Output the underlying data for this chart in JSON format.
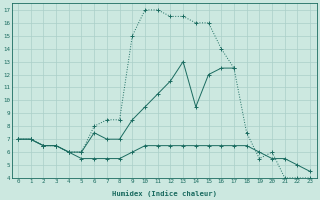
{
  "xlabel": "Humidex (Indice chaleur)",
  "bg_color": "#cce8e0",
  "grid_color": "#aacfc8",
  "line_color": "#1a6b60",
  "xlim": [
    -0.5,
    23.5
  ],
  "ylim": [
    4,
    17.5
  ],
  "xticks": [
    0,
    1,
    2,
    3,
    4,
    5,
    6,
    7,
    8,
    9,
    10,
    11,
    12,
    13,
    14,
    15,
    16,
    17,
    18,
    19,
    20,
    21,
    22,
    23
  ],
  "yticks": [
    4,
    5,
    6,
    7,
    8,
    9,
    10,
    11,
    12,
    13,
    14,
    15,
    16,
    17
  ],
  "curve1_x": [
    0,
    1,
    2,
    3,
    4,
    5,
    6,
    7,
    8,
    9,
    10,
    11,
    12,
    13,
    14,
    15,
    16,
    17,
    18,
    19,
    20,
    21,
    22,
    23
  ],
  "curve1_y": [
    7,
    7,
    6.5,
    6.5,
    6,
    6,
    8,
    8.5,
    8.5,
    15,
    17,
    17,
    16.5,
    16.5,
    16,
    16,
    14,
    12.5,
    7.5,
    5.5,
    6,
    4,
    4,
    4
  ],
  "curve2_x": [
    0,
    1,
    2,
    3,
    4,
    5,
    6,
    7,
    8,
    9,
    10,
    11,
    12,
    13,
    14,
    15,
    16,
    17
  ],
  "curve2_y": [
    7,
    7,
    6.5,
    6.5,
    6,
    6,
    7.5,
    7,
    7,
    8.5,
    9.5,
    10.5,
    11.5,
    13,
    9.5,
    12.0,
    12.5,
    12.5
  ],
  "curve3_x": [
    0,
    1,
    2,
    3,
    4,
    5,
    6,
    7,
    8,
    9,
    10,
    11,
    12,
    13,
    14,
    15,
    16,
    17,
    18,
    19,
    20,
    21,
    22,
    23
  ],
  "curve3_y": [
    7,
    7,
    6.5,
    6.5,
    6,
    5.5,
    5.5,
    5.5,
    5.5,
    6,
    6.5,
    6.5,
    6.5,
    6.5,
    6.5,
    6.5,
    6.5,
    6.5,
    6.5,
    6,
    5.5,
    5.5,
    5,
    4.5
  ]
}
